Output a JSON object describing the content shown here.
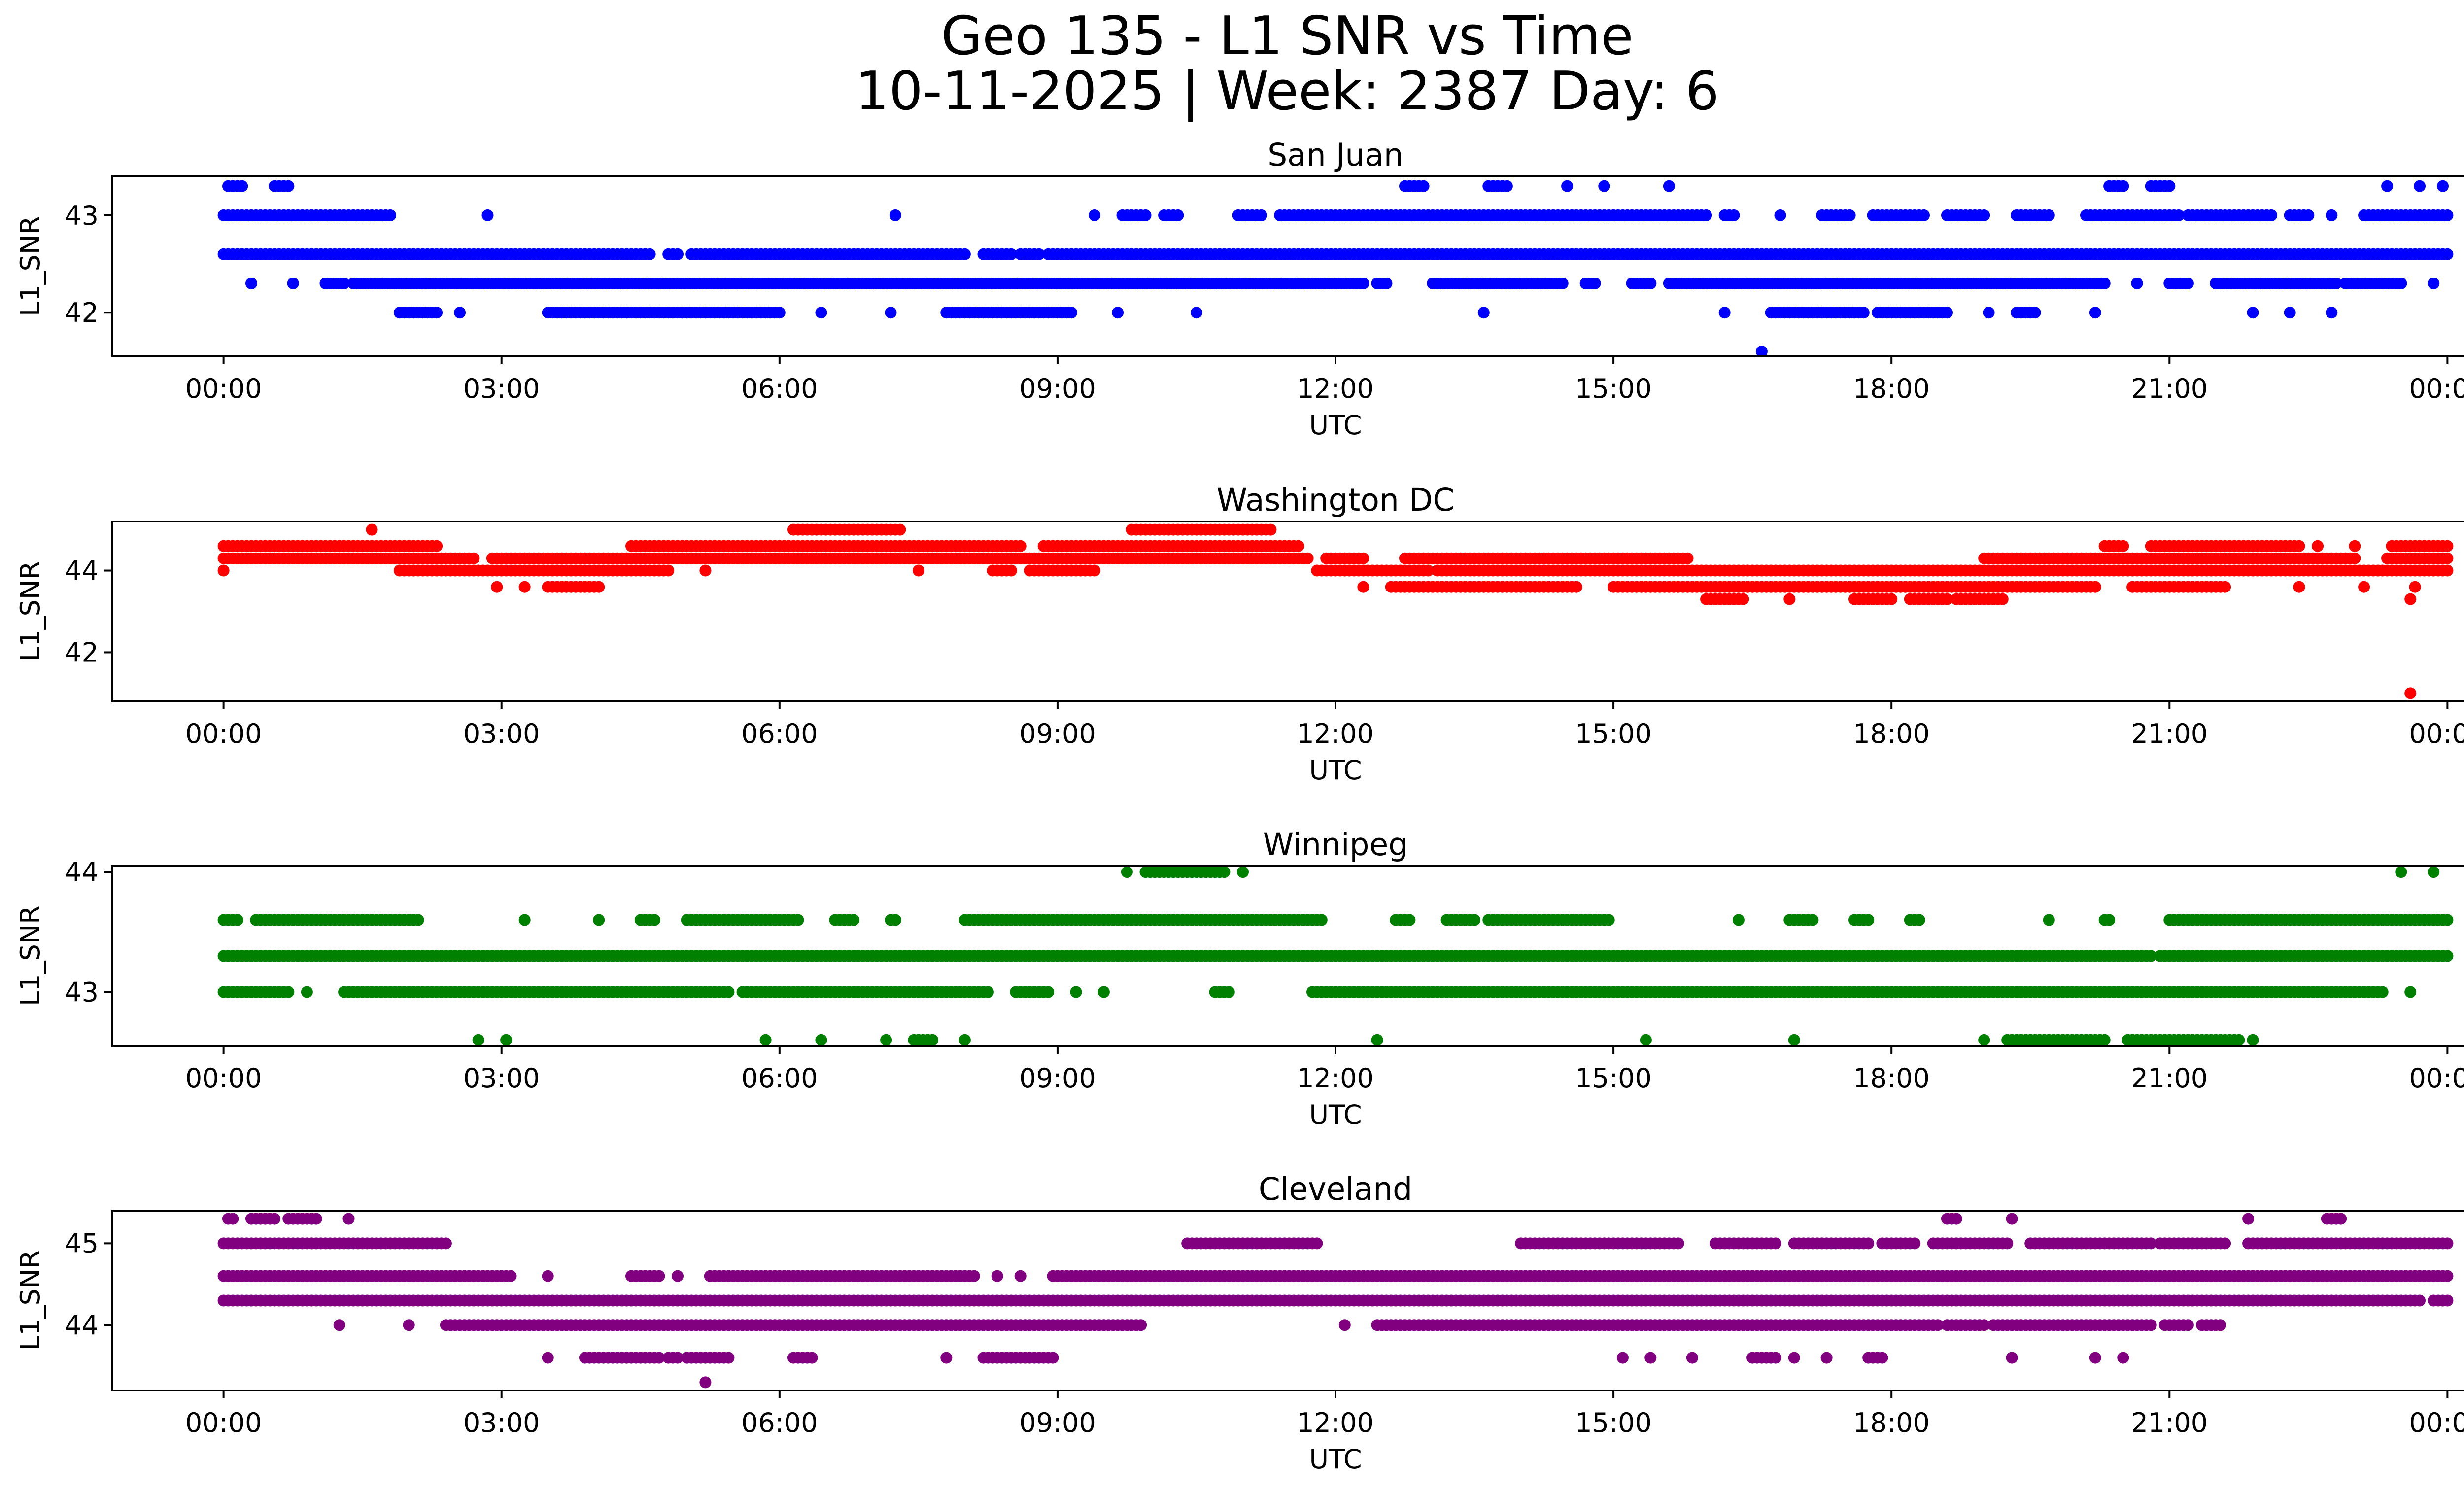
{
  "figure": {
    "title_line1": "Geo 135 - L1 SNR vs Time",
    "title_line2": "10-11-2025 | Week: 2387 Day: 6"
  },
  "chart_data": [
    {
      "type": "scatter",
      "title": "San Juan",
      "xlabel": "UTC",
      "ylabel": "L1_SNR",
      "color": "#0000ff",
      "x_tick_labels": [
        "00:00",
        "03:00",
        "06:00",
        "09:00",
        "12:00",
        "15:00",
        "18:00",
        "21:00",
        "00:00"
      ],
      "x_range_hours": [
        0,
        24
      ],
      "xlim_hours": [
        -1.2,
        25.2
      ],
      "y_ticks": [
        42,
        43
      ],
      "ylim": [
        41.55,
        43.4
      ],
      "levels": [
        {
          "y": 43.3,
          "segments": [
            [
              0.05,
              0.2
            ],
            [
              0.55,
              0.7
            ],
            [
              12.75,
              12.95
            ],
            [
              13.65,
              13.85
            ],
            [
              14.5,
              14.5
            ],
            [
              14.9,
              14.9
            ],
            [
              15.6,
              15.6
            ],
            [
              20.35,
              20.5
            ],
            [
              20.8,
              21.0
            ],
            [
              23.35,
              23.35
            ],
            [
              23.7,
              23.7
            ],
            [
              23.95,
              23.95
            ]
          ],
          "step": 0.05
        },
        {
          "y": 43.0,
          "segments": [
            [
              0.0,
              1.8
            ],
            [
              2.85,
              2.85
            ],
            [
              7.25,
              7.25
            ],
            [
              9.4,
              9.4
            ],
            [
              9.7,
              9.95
            ],
            [
              10.15,
              10.3
            ],
            [
              10.95,
              11.2
            ],
            [
              11.4,
              12.5
            ],
            [
              12.55,
              16.0
            ],
            [
              16.2,
              16.3
            ],
            [
              16.8,
              16.8
            ],
            [
              17.25,
              17.55
            ],
            [
              17.8,
              18.35
            ],
            [
              18.6,
              19.0
            ],
            [
              19.35,
              19.7
            ],
            [
              20.1,
              21.1
            ],
            [
              21.2,
              22.1
            ],
            [
              22.3,
              22.5
            ],
            [
              22.75,
              22.75
            ],
            [
              23.1,
              24.0
            ]
          ],
          "step": 0.05
        },
        {
          "y": 42.6,
          "segments": [
            [
              0.0,
              4.6
            ],
            [
              4.8,
              4.9
            ],
            [
              5.05,
              8.0
            ],
            [
              8.2,
              8.5
            ],
            [
              8.6,
              8.8
            ],
            [
              8.9,
              24.0
            ]
          ],
          "step": 0.05
        },
        {
          "y": 42.3,
          "segments": [
            [
              0.3,
              0.3
            ],
            [
              0.75,
              0.75
            ],
            [
              1.1,
              1.3
            ],
            [
              1.4,
              12.3
            ],
            [
              12.45,
              12.55
            ],
            [
              13.05,
              14.45
            ],
            [
              14.7,
              14.8
            ],
            [
              15.2,
              15.4
            ],
            [
              15.6,
              20.3
            ],
            [
              20.65,
              20.65
            ],
            [
              21.0,
              21.2
            ],
            [
              21.5,
              22.8
            ],
            [
              22.9,
              23.5
            ],
            [
              23.85,
              23.85
            ]
          ],
          "step": 0.05
        },
        {
          "y": 42.0,
          "segments": [
            [
              1.9,
              2.3
            ],
            [
              2.55,
              2.55
            ],
            [
              3.5,
              6.0
            ],
            [
              6.45,
              6.45
            ],
            [
              7.2,
              7.2
            ],
            [
              7.8,
              9.15
            ],
            [
              9.65,
              9.65
            ],
            [
              10.5,
              10.5
            ],
            [
              13.6,
              13.6
            ],
            [
              16.2,
              16.2
            ],
            [
              16.7,
              17.7
            ],
            [
              17.85,
              18.6
            ],
            [
              19.05,
              19.05
            ],
            [
              19.35,
              19.55
            ],
            [
              20.2,
              20.2
            ],
            [
              21.9,
              21.9
            ],
            [
              22.3,
              22.3
            ],
            [
              22.75,
              22.75
            ]
          ],
          "step": 0.05
        },
        {
          "y": 41.6,
          "segments": [
            [
              16.6,
              16.6
            ]
          ],
          "step": 0.05
        }
      ]
    },
    {
      "type": "scatter",
      "title": "Washington DC",
      "xlabel": "UTC",
      "ylabel": "L1_SNR",
      "color": "#ff0000",
      "x_tick_labels": [
        "00:00",
        "03:00",
        "06:00",
        "09:00",
        "12:00",
        "15:00",
        "18:00",
        "21:00",
        "00:00"
      ],
      "x_range_hours": [
        0,
        24
      ],
      "xlim_hours": [
        -1.2,
        25.2
      ],
      "y_ticks": [
        42,
        44
      ],
      "ylim": [
        40.8,
        45.2
      ],
      "levels": [
        {
          "y": 45.0,
          "segments": [
            [
              1.6,
              1.6
            ],
            [
              6.15,
              7.3
            ],
            [
              9.8,
              11.3
            ]
          ],
          "step": 0.05
        },
        {
          "y": 44.6,
          "segments": [
            [
              0.0,
              2.3
            ],
            [
              4.4,
              8.6
            ],
            [
              8.85,
              11.6
            ],
            [
              20.3,
              20.5
            ],
            [
              20.8,
              22.4
            ],
            [
              22.6,
              22.6
            ],
            [
              23.0,
              23.0
            ],
            [
              23.4,
              24.0
            ]
          ],
          "step": 0.05
        },
        {
          "y": 44.3,
          "segments": [
            [
              0.0,
              2.7
            ],
            [
              2.9,
              11.7
            ],
            [
              11.9,
              12.3
            ],
            [
              12.75,
              15.8
            ],
            [
              19.0,
              23.0
            ],
            [
              23.35,
              24.0
            ]
          ],
          "step": 0.05
        },
        {
          "y": 44.0,
          "segments": [
            [
              0.0,
              0.0
            ],
            [
              1.9,
              4.8
            ],
            [
              5.2,
              5.2
            ],
            [
              7.5,
              7.5
            ],
            [
              8.3,
              8.5
            ],
            [
              8.7,
              9.4
            ],
            [
              11.8,
              13.0
            ],
            [
              13.1,
              24.0
            ]
          ],
          "step": 0.05
        },
        {
          "y": 43.6,
          "segments": [
            [
              2.95,
              2.95
            ],
            [
              3.25,
              3.25
            ],
            [
              3.5,
              4.05
            ],
            [
              12.3,
              12.3
            ],
            [
              12.6,
              14.6
            ],
            [
              15.0,
              20.2
            ],
            [
              20.6,
              21.6
            ],
            [
              22.4,
              22.4
            ],
            [
              23.1,
              23.1
            ],
            [
              23.65,
              23.65
            ]
          ],
          "step": 0.05
        },
        {
          "y": 43.3,
          "segments": [
            [
              16.0,
              16.4
            ],
            [
              16.9,
              16.9
            ],
            [
              17.6,
              18.0
            ],
            [
              18.2,
              18.6
            ],
            [
              18.7,
              19.2
            ],
            [
              23.6,
              23.6
            ]
          ],
          "step": 0.05
        },
        {
          "y": 41.0,
          "segments": [
            [
              23.6,
              23.6
            ]
          ],
          "step": 0.05
        }
      ]
    },
    {
      "type": "scatter",
      "title": "Winnipeg",
      "xlabel": "UTC",
      "ylabel": "L1_SNR",
      "color": "#008000",
      "x_tick_labels": [
        "00:00",
        "03:00",
        "06:00",
        "09:00",
        "12:00",
        "15:00",
        "18:00",
        "21:00",
        "00:00"
      ],
      "x_range_hours": [
        0,
        24
      ],
      "xlim_hours": [
        -1.2,
        25.2
      ],
      "y_ticks": [
        43,
        44
      ],
      "ylim": [
        42.55,
        44.05
      ],
      "levels": [
        {
          "y": 44.0,
          "segments": [
            [
              9.75,
              9.75
            ],
            [
              9.95,
              10.8
            ],
            [
              11.0,
              11.0
            ],
            [
              23.5,
              23.5
            ],
            [
              23.85,
              23.85
            ]
          ],
          "step": 0.05
        },
        {
          "y": 43.6,
          "segments": [
            [
              0.0,
              0.15
            ],
            [
              0.35,
              2.1
            ],
            [
              3.25,
              3.25
            ],
            [
              4.05,
              4.05
            ],
            [
              4.5,
              4.65
            ],
            [
              5.0,
              6.2
            ],
            [
              6.6,
              6.8
            ],
            [
              7.2,
              7.25
            ],
            [
              8.0,
              11.85
            ],
            [
              12.65,
              12.8
            ],
            [
              13.2,
              13.5
            ],
            [
              13.65,
              14.95
            ],
            [
              16.35,
              16.35
            ],
            [
              16.9,
              17.15
            ],
            [
              17.6,
              17.75
            ],
            [
              18.2,
              18.3
            ],
            [
              19.7,
              19.7
            ],
            [
              20.3,
              20.35
            ],
            [
              21.0,
              24.0
            ]
          ],
          "step": 0.05
        },
        {
          "y": 43.3,
          "segments": [
            [
              0.0,
              20.8
            ],
            [
              20.9,
              24.0
            ]
          ],
          "step": 0.05
        },
        {
          "y": 43.0,
          "segments": [
            [
              0.0,
              0.7
            ],
            [
              0.9,
              0.9
            ],
            [
              1.3,
              5.45
            ],
            [
              5.6,
              8.25
            ],
            [
              8.55,
              8.9
            ],
            [
              9.2,
              9.2
            ],
            [
              9.5,
              9.5
            ],
            [
              10.7,
              10.85
            ],
            [
              11.75,
              23.3
            ],
            [
              23.6,
              23.6
            ]
          ],
          "step": 0.05
        },
        {
          "y": 42.6,
          "segments": [
            [
              2.75,
              2.75
            ],
            [
              3.05,
              3.05
            ],
            [
              5.85,
              5.85
            ],
            [
              6.45,
              6.45
            ],
            [
              7.15,
              7.15
            ],
            [
              7.45,
              7.65
            ],
            [
              8.0,
              8.0
            ],
            [
              12.45,
              12.45
            ],
            [
              15.35,
              15.35
            ],
            [
              16.95,
              16.95
            ],
            [
              19.0,
              19.0
            ],
            [
              19.25,
              20.3
            ],
            [
              20.55,
              21.75
            ],
            [
              21.9,
              21.9
            ]
          ],
          "step": 0.05
        }
      ]
    },
    {
      "type": "scatter",
      "title": "Cleveland",
      "xlabel": "UTC",
      "ylabel": "L1_SNR",
      "color": "#800080",
      "x_tick_labels": [
        "00:00",
        "03:00",
        "06:00",
        "09:00",
        "12:00",
        "15:00",
        "18:00",
        "21:00",
        "00:00"
      ],
      "x_range_hours": [
        0,
        24
      ],
      "xlim_hours": [
        -1.2,
        25.2
      ],
      "y_ticks": [
        44,
        45
      ],
      "ylim": [
        43.2,
        45.4
      ],
      "levels": [
        {
          "y": 45.3,
          "segments": [
            [
              0.05,
              0.1
            ],
            [
              0.3,
              0.55
            ],
            [
              0.7,
              1.0
            ],
            [
              1.35,
              1.35
            ],
            [
              18.6,
              18.7
            ],
            [
              19.3,
              19.3
            ],
            [
              21.85,
              21.85
            ],
            [
              22.7,
              22.85
            ]
          ],
          "step": 0.05
        },
        {
          "y": 45.0,
          "segments": [
            [
              0.0,
              2.4
            ],
            [
              10.4,
              11.8
            ],
            [
              14.0,
              15.7
            ],
            [
              16.1,
              16.75
            ],
            [
              16.95,
              17.75
            ],
            [
              17.9,
              18.25
            ],
            [
              18.45,
              19.25
            ],
            [
              19.5,
              20.8
            ],
            [
              20.9,
              21.6
            ],
            [
              21.85,
              24.0
            ]
          ],
          "step": 0.05
        },
        {
          "y": 44.6,
          "segments": [
            [
              0.0,
              3.1
            ],
            [
              3.5,
              3.5
            ],
            [
              4.4,
              4.7
            ],
            [
              4.9,
              4.9
            ],
            [
              5.25,
              8.1
            ],
            [
              8.35,
              8.35
            ],
            [
              8.6,
              8.6
            ],
            [
              8.95,
              24.0
            ]
          ],
          "step": 0.05
        },
        {
          "y": 44.3,
          "segments": [
            [
              0.0,
              23.7
            ],
            [
              23.85,
              24.0
            ]
          ],
          "step": 0.05
        },
        {
          "y": 44.0,
          "segments": [
            [
              1.25,
              1.25
            ],
            [
              2.0,
              2.0
            ],
            [
              2.4,
              9.9
            ],
            [
              12.1,
              12.1
            ],
            [
              12.45,
              18.5
            ],
            [
              18.6,
              19.0
            ],
            [
              19.1,
              20.8
            ],
            [
              20.95,
              21.2
            ],
            [
              21.35,
              21.55
            ]
          ],
          "step": 0.05
        },
        {
          "y": 43.6,
          "segments": [
            [
              3.5,
              3.5
            ],
            [
              3.9,
              4.7
            ],
            [
              4.8,
              4.9
            ],
            [
              5.0,
              5.45
            ],
            [
              6.15,
              6.35
            ],
            [
              7.8,
              7.8
            ],
            [
              8.2,
              8.95
            ],
            [
              15.1,
              15.1
            ],
            [
              15.4,
              15.4
            ],
            [
              15.85,
              15.85
            ],
            [
              16.5,
              16.75
            ],
            [
              16.95,
              16.95
            ],
            [
              17.3,
              17.3
            ],
            [
              17.75,
              17.9
            ],
            [
              19.3,
              19.3
            ],
            [
              20.2,
              20.2
            ],
            [
              20.5,
              20.5
            ]
          ],
          "step": 0.05
        },
        {
          "y": 43.3,
          "segments": [
            [
              5.2,
              5.2
            ]
          ],
          "step": 0.05
        }
      ]
    }
  ]
}
